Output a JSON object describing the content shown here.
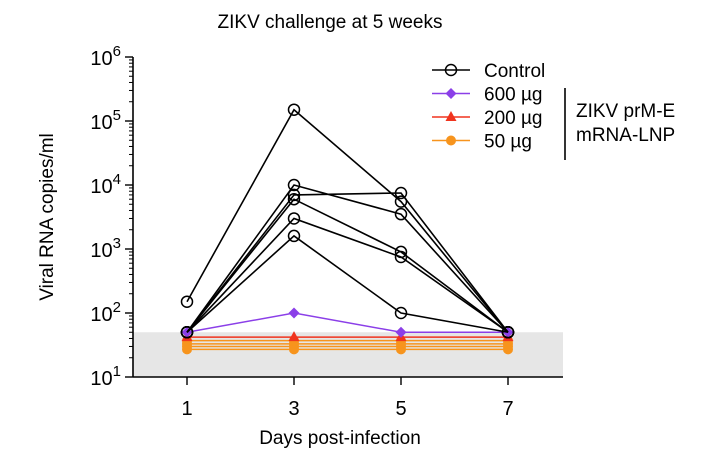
{
  "chart_data": {
    "type": "line",
    "title": "ZIKV challenge at 5 weeks",
    "xlabel": "Days post-infection",
    "ylabel": "Viral RNA copies/ml",
    "yscale": "log",
    "ylim": [
      10,
      1000000
    ],
    "xlim": [
      0,
      8
    ],
    "x_ticks": [
      1,
      3,
      5,
      7
    ],
    "x_tick_labels": [
      "1",
      "3",
      "5",
      "7"
    ],
    "y_ticks": [
      10,
      100,
      1000,
      10000,
      100000,
      1000000
    ],
    "y_tick_base": "10",
    "y_tick_exponents": [
      "1",
      "2",
      "3",
      "4",
      "5",
      "6"
    ],
    "limit_of_detection": 50,
    "legend": {
      "position": "top-right",
      "group_label": [
        "ZIKV prM-E",
        "mRNA-LNP"
      ],
      "entries": [
        {
          "label": "Control",
          "color": "#000000",
          "marker": "open-circle"
        },
        {
          "label": "600 µg",
          "color": "#8B3FE8",
          "marker": "diamond"
        },
        {
          "label": "200 µg",
          "color": "#F0341E",
          "marker": "triangle"
        },
        {
          "label": "50 µg",
          "color": "#F7941D",
          "marker": "circle"
        }
      ]
    },
    "x": [
      1,
      3,
      5,
      7
    ],
    "series": [
      {
        "name": "Control",
        "animal": 1,
        "color": "#000000",
        "marker": "open-circle",
        "values": [
          150,
          150000,
          5500,
          50
        ]
      },
      {
        "name": "Control",
        "animal": 2,
        "color": "#000000",
        "marker": "open-circle",
        "values": [
          50,
          10000,
          3500,
          50
        ]
      },
      {
        "name": "Control",
        "animal": 3,
        "color": "#000000",
        "marker": "open-circle",
        "values": [
          50,
          7000,
          7500,
          50
        ]
      },
      {
        "name": "Control",
        "animal": 4,
        "color": "#000000",
        "marker": "open-circle",
        "values": [
          50,
          6000,
          900,
          50
        ]
      },
      {
        "name": "Control",
        "animal": 5,
        "color": "#000000",
        "marker": "open-circle",
        "values": [
          50,
          3000,
          750,
          50
        ]
      },
      {
        "name": "Control",
        "animal": 6,
        "color": "#000000",
        "marker": "open-circle",
        "values": [
          50,
          1600,
          100,
          50
        ]
      },
      {
        "name": "600 µg",
        "color": "#8B3FE8",
        "marker": "diamond",
        "values": [
          50,
          100,
          50,
          50
        ]
      },
      {
        "name": "200 µg",
        "color": "#F0341E",
        "marker": "triangle",
        "values": [
          42,
          42,
          42,
          42
        ]
      },
      {
        "name": "50 µg",
        "animal": 1,
        "color": "#F7941D",
        "marker": "circle",
        "values": [
          37,
          37,
          37,
          37
        ]
      },
      {
        "name": "50 µg",
        "animal": 2,
        "color": "#F7941D",
        "marker": "circle",
        "values": [
          33,
          33,
          33,
          33
        ]
      },
      {
        "name": "50 µg",
        "animal": 3,
        "color": "#F7941D",
        "marker": "circle",
        "values": [
          30,
          30,
          30,
          30
        ]
      },
      {
        "name": "50 µg",
        "animal": 4,
        "color": "#F7941D",
        "marker": "circle",
        "values": [
          27,
          27,
          27,
          27
        ]
      }
    ]
  }
}
